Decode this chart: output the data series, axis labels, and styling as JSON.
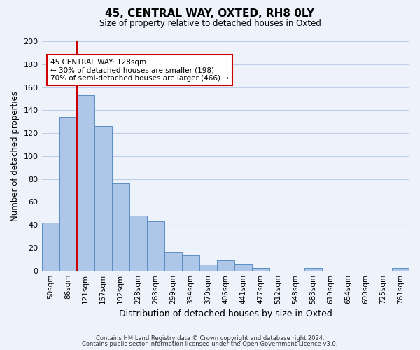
{
  "title": "45, CENTRAL WAY, OXTED, RH8 0LY",
  "subtitle": "Size of property relative to detached houses in Oxted",
  "xlabel": "Distribution of detached houses by size in Oxted",
  "ylabel": "Number of detached properties",
  "bar_labels": [
    "50sqm",
    "86sqm",
    "121sqm",
    "157sqm",
    "192sqm",
    "228sqm",
    "263sqm",
    "299sqm",
    "334sqm",
    "370sqm",
    "406sqm",
    "441sqm",
    "477sqm",
    "512sqm",
    "548sqm",
    "583sqm",
    "619sqm",
    "654sqm",
    "690sqm",
    "725sqm",
    "761sqm"
  ],
  "bar_values": [
    42,
    134,
    153,
    126,
    76,
    48,
    43,
    16,
    13,
    5,
    9,
    6,
    2,
    0,
    0,
    2,
    0,
    0,
    0,
    0,
    2
  ],
  "bar_color": "#aec6e8",
  "bar_edge_color": "#5a8fc2",
  "background_color": "#eef3fb",
  "grid_color": "#c0cfe8",
  "redline_x": 2,
  "redline_color": "#cc0000",
  "annotation_title": "45 CENTRAL WAY: 128sqm",
  "annotation_line1": "← 30% of detached houses are smaller (198)",
  "annotation_line2": "70% of semi-detached houses are larger (466) →",
  "annotation_box_color": "#ffffff",
  "annotation_box_edge": "#cc0000",
  "ylim": [
    0,
    200
  ],
  "yticks": [
    0,
    20,
    40,
    60,
    80,
    100,
    120,
    140,
    160,
    180,
    200
  ],
  "footer1": "Contains HM Land Registry data © Crown copyright and database right 2024.",
  "footer2": "Contains public sector information licensed under the Open Government Licence v3.0."
}
